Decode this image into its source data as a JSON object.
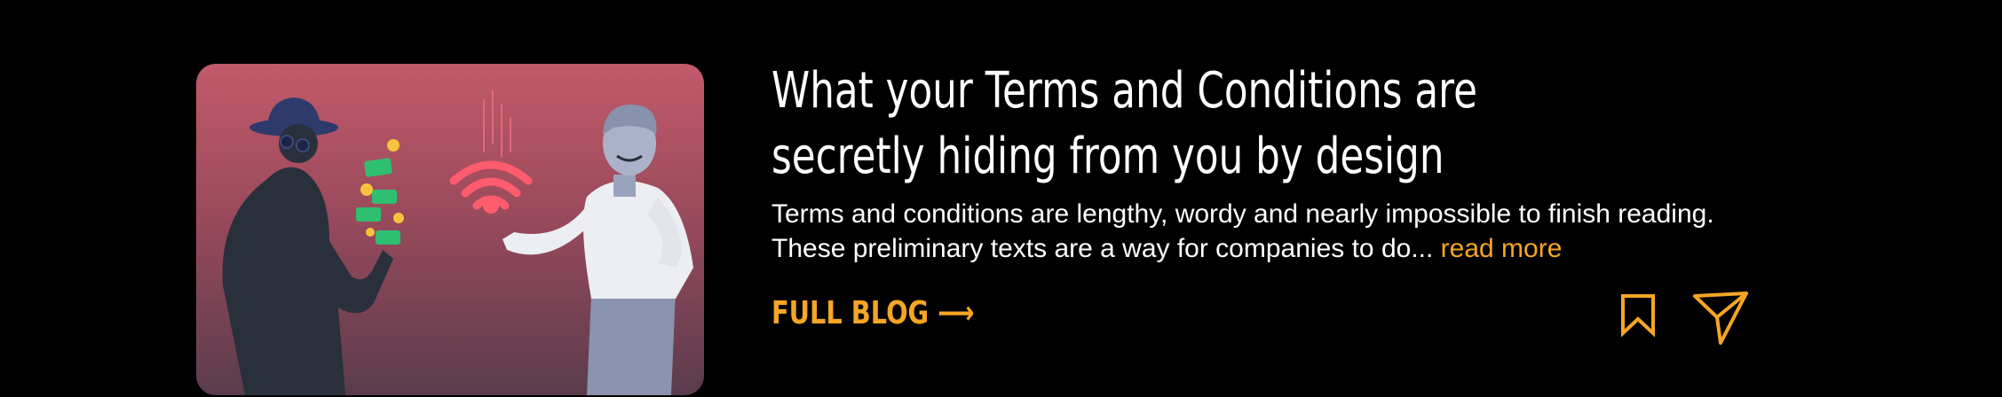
{
  "post": {
    "title": "What your Terms and Conditions are secretly hiding from you by design",
    "excerpt": "Terms and conditions are lengthy, wordy and nearly impossible to finish reading. These preliminary texts are a way for companies to do...",
    "read_more_label": "read more",
    "full_blog_label": "FULL BLOG ⟶"
  },
  "icons": {
    "bookmark": "bookmark-icon",
    "share": "send-icon"
  },
  "colors": {
    "background": "#000000",
    "accent": "#f5a623",
    "text": "#ffffff"
  }
}
